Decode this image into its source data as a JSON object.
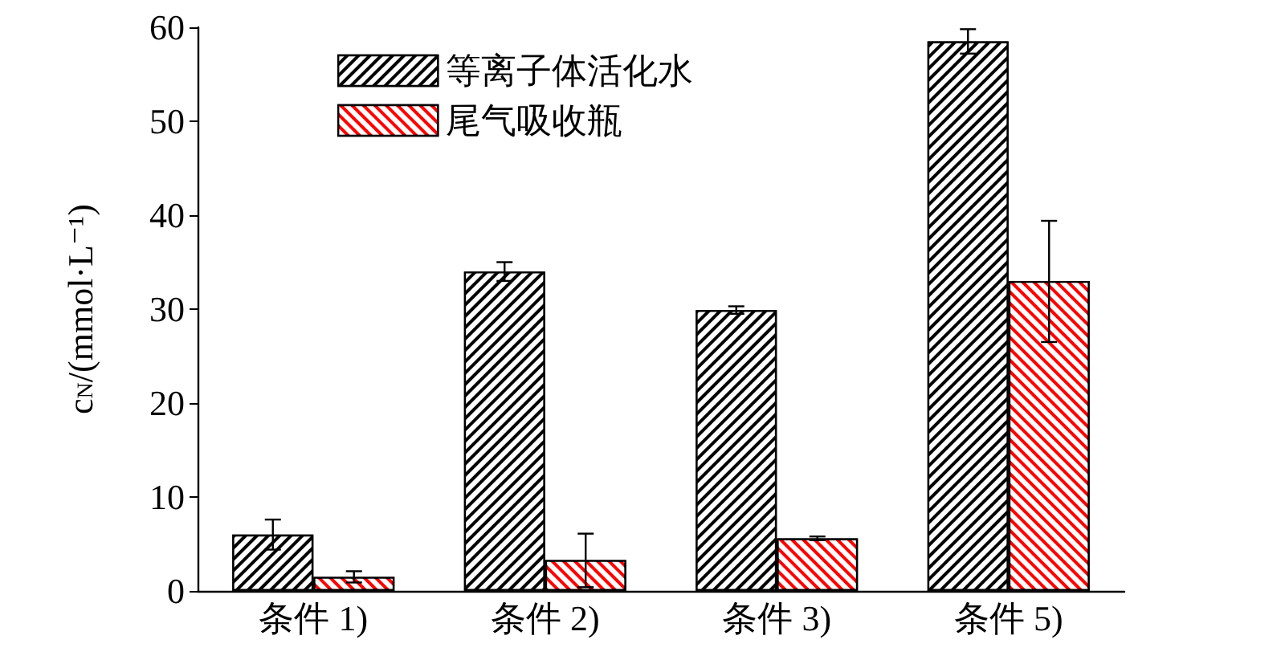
{
  "chart_data": {
    "type": "bar",
    "ylabel": "c$_{N}$/(mmol·L⁻¹)",
    "categories": [
      "条件 1)",
      "条件 2)",
      "条件 3)",
      "条件 5)"
    ],
    "series": [
      {
        "name": "等离子体活化水",
        "color": "#000000",
        "values": [
          6.0,
          34.0,
          29.9,
          58.5
        ],
        "errors": [
          1.6,
          1.0,
          0.4,
          1.3
        ]
      },
      {
        "name": "尾气吸收瓶",
        "color": "#ff0000",
        "values": [
          1.5,
          3.3,
          5.6,
          33.0
        ],
        "errors": [
          0.6,
          [
            0.4,
            6.1
          ],
          0.2,
          [
            26.5,
            39.4
          ]
        ]
      }
    ],
    "ylim": [
      0,
      60
    ],
    "yticks": [
      0,
      10,
      20,
      30,
      40,
      50,
      60
    ],
    "grid": false,
    "legend": "top left"
  }
}
